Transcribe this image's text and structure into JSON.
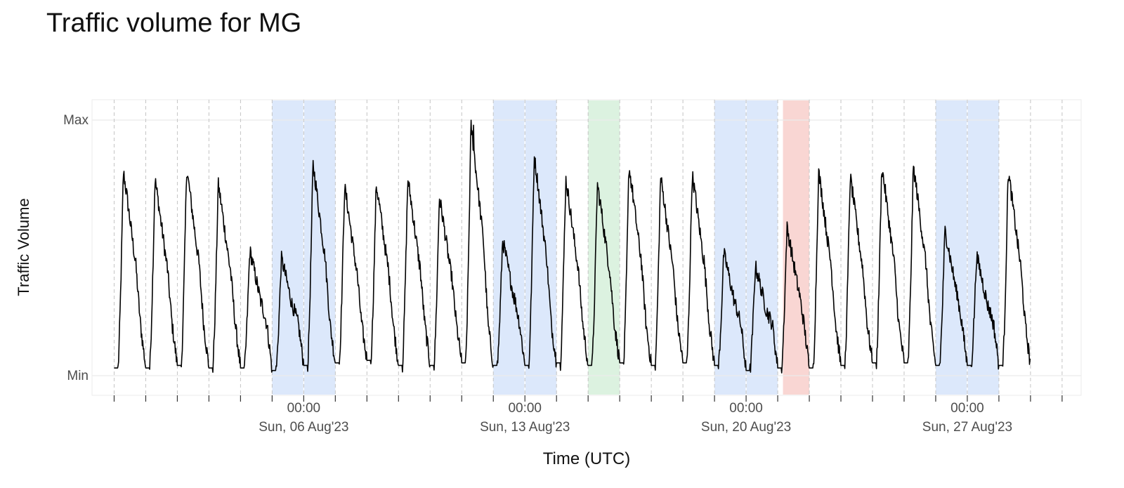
{
  "chart_data": {
    "type": "line",
    "title": "Traffic volume for MG",
    "xlabel": "Time (UTC)",
    "ylabel": "Traffic Volume",
    "y_ticks": [
      "Min",
      "Max"
    ],
    "ylim": [
      0,
      1
    ],
    "xlim": [
      "2023-07-30T00:00",
      "2023-09-01T00:00"
    ],
    "x_ticks": [
      {
        "time": "00:00",
        "date": "Sun, 06 Aug'23",
        "at": "2023-08-06T00:00"
      },
      {
        "time": "00:00",
        "date": "Sun, 13 Aug'23",
        "at": "2023-08-13T00:00"
      },
      {
        "time": "00:00",
        "date": "Sun, 20 Aug'23",
        "at": "2023-08-20T00:00"
      },
      {
        "time": "00:00",
        "date": "Sun, 27 Aug'23",
        "at": "2023-08-27T00:00"
      }
    ],
    "grid": true,
    "highlight_periods": [
      {
        "start": "2023-08-05T00:00",
        "end": "2023-08-07T00:00",
        "color": "#dce8fb",
        "kind": "weekend"
      },
      {
        "start": "2023-08-12T00:00",
        "end": "2023-08-14T00:00",
        "color": "#dce8fb",
        "kind": "weekend"
      },
      {
        "start": "2023-08-15T00:00",
        "end": "2023-08-16T00:00",
        "color": "#dcf2e0",
        "kind": "green"
      },
      {
        "start": "2023-08-19T00:00",
        "end": "2023-08-21T00:00",
        "color": "#dce8fb",
        "kind": "weekend"
      },
      {
        "start": "2023-08-21T04:00",
        "end": "2023-08-22T00:00",
        "color": "#f9d6d3",
        "kind": "red"
      },
      {
        "start": "2023-08-26T00:00",
        "end": "2023-08-28T00:00",
        "color": "#dce8fb",
        "kind": "weekend"
      }
    ],
    "series": [
      {
        "color": "#000000",
        "x": [
          "2023-07-31T00:00",
          "2023-08-01T00:00",
          "2023-08-02T00:00",
          "2023-08-03T00:00",
          "2023-08-04T00:00",
          "2023-08-05T00:00",
          "2023-08-06T00:00",
          "2023-08-07T00:00",
          "2023-08-08T00:00",
          "2023-08-09T00:00",
          "2023-08-10T00:00",
          "2023-08-11T00:00",
          "2023-08-12T00:00",
          "2023-08-13T00:00",
          "2023-08-14T00:00",
          "2023-08-15T00:00",
          "2023-08-16T00:00",
          "2023-08-17T00:00",
          "2023-08-18T00:00",
          "2023-08-19T00:00",
          "2023-08-20T00:00",
          "2023-08-21T00:00",
          "2023-08-22T00:00",
          "2023-08-23T00:00",
          "2023-08-24T00:00",
          "2023-08-25T00:00",
          "2023-08-26T00:00",
          "2023-08-27T00:00",
          "2023-08-28T00:00"
        ],
        "daily_peak": [
          0.8,
          0.77,
          0.81,
          0.75,
          0.49,
          0.46,
          0.83,
          0.74,
          0.75,
          0.77,
          0.7,
          0.98,
          0.53,
          0.86,
          0.77,
          0.75,
          0.82,
          0.78,
          0.79,
          0.48,
          0.43,
          0.58,
          0.8,
          0.78,
          0.82,
          0.82,
          0.57,
          0.47,
          0.8
        ],
        "daily_min": [
          0.03,
          0.03,
          0.04,
          0.03,
          0.03,
          0.02,
          0.04,
          0.05,
          0.06,
          0.04,
          0.04,
          0.05,
          0.04,
          0.04,
          0.05,
          0.04,
          0.05,
          0.04,
          0.05,
          0.04,
          0.02,
          0.03,
          0.03,
          0.04,
          0.05,
          0.05,
          0.04,
          0.04,
          0.04
        ]
      }
    ]
  }
}
